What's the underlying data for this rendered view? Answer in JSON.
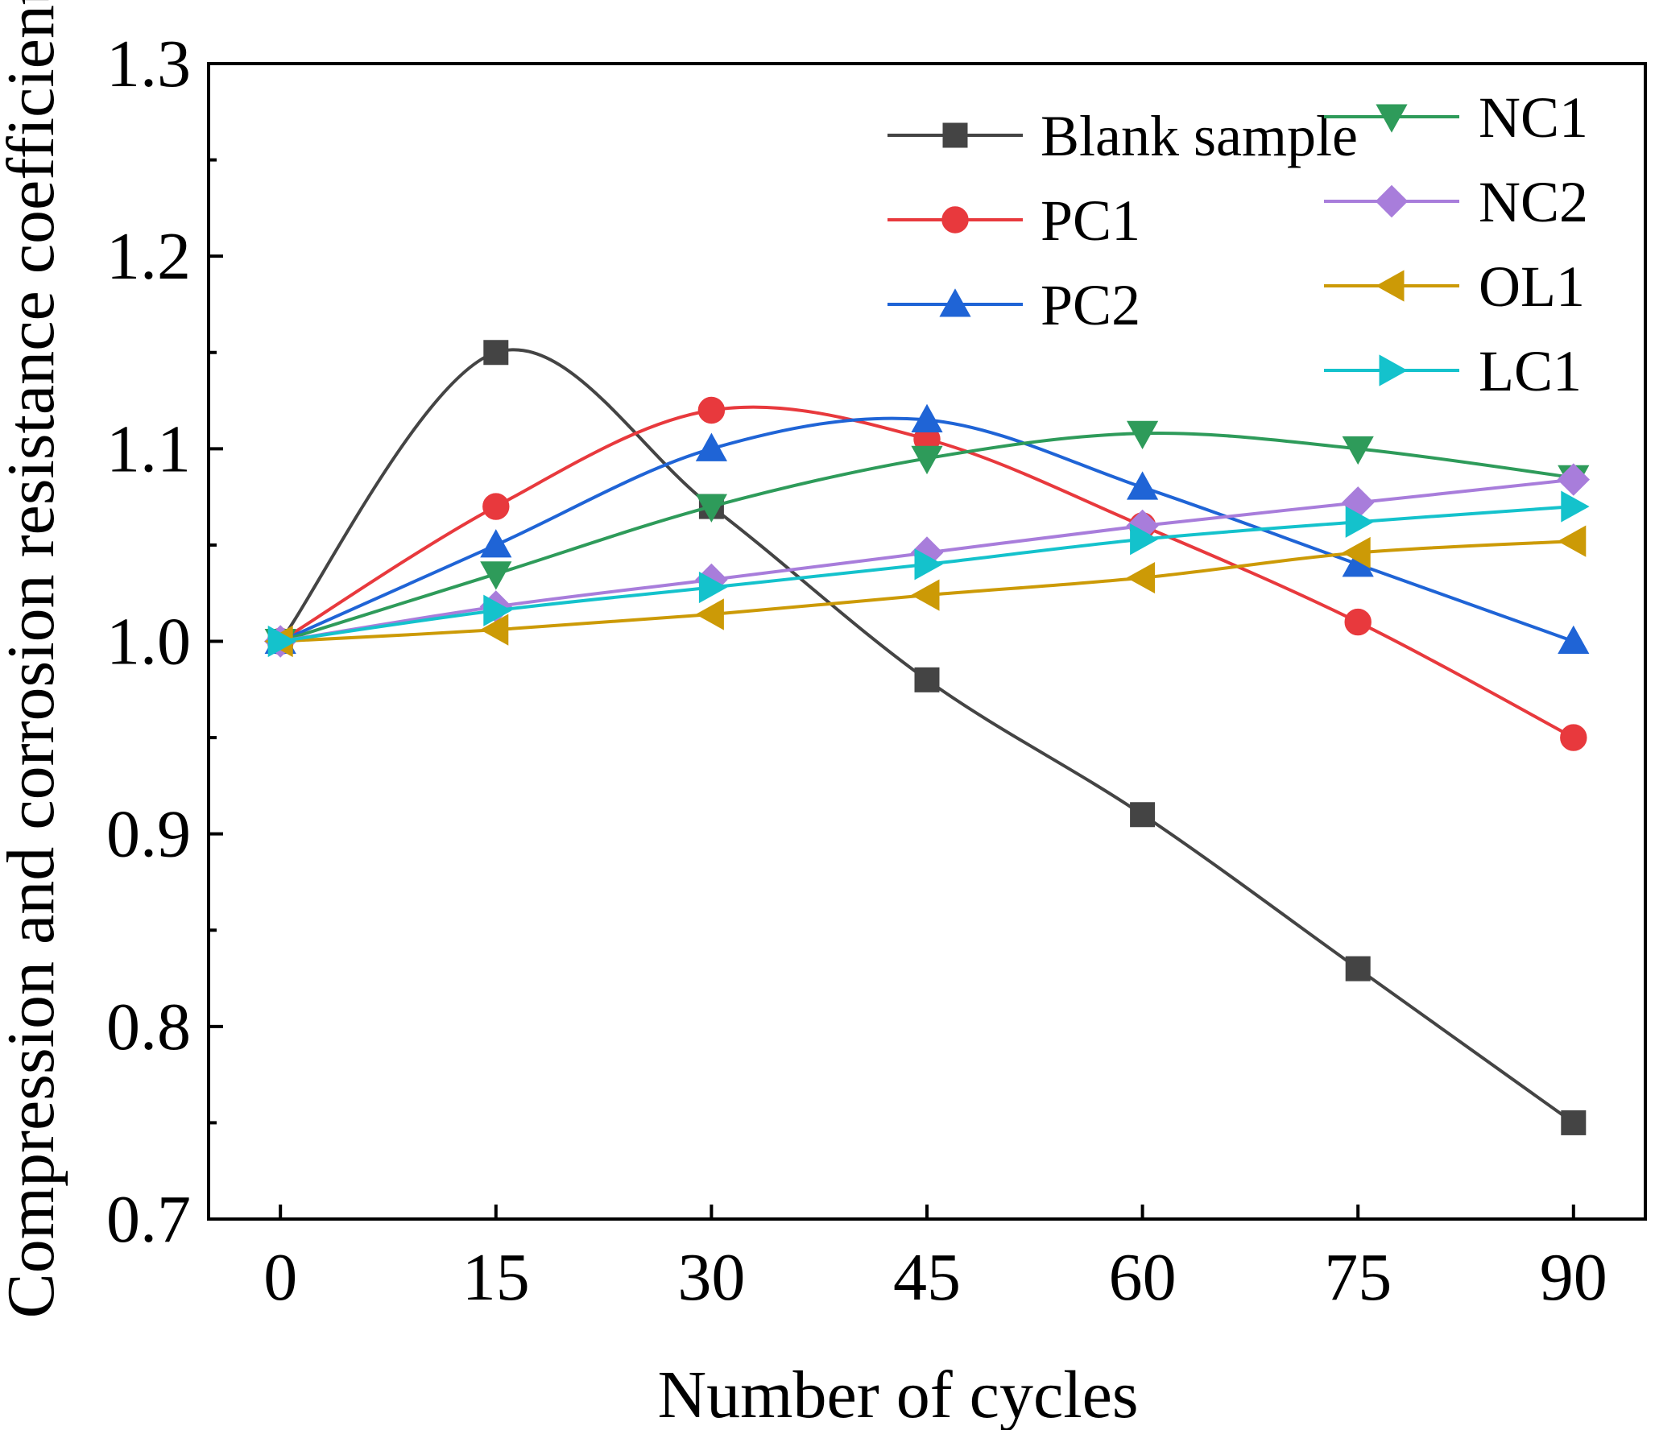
{
  "chart_data": {
    "type": "line",
    "title": "",
    "xlabel": "Number of cycles",
    "ylabel": "Compression and corrosion resistance coefficient",
    "x": [
      0,
      15,
      30,
      45,
      60,
      75,
      90
    ],
    "xticks": [
      "0",
      "15",
      "30",
      "45",
      "60",
      "75",
      "90"
    ],
    "xlim": [
      -5,
      95
    ],
    "yticks": [
      "0.7",
      "0.8",
      "0.9",
      "1.0",
      "1.1",
      "1.2",
      "1.3"
    ],
    "ylim": [
      0.7,
      1.3
    ],
    "grid": false,
    "legend_position": "top-right",
    "series": [
      {
        "name": "Blank sample",
        "color": "#444444",
        "marker": "square",
        "values": [
          1.0,
          1.15,
          1.07,
          0.98,
          0.91,
          0.83,
          0.75
        ]
      },
      {
        "name": "PC1",
        "color": "#e8393d",
        "marker": "circle",
        "values": [
          1.0,
          1.07,
          1.12,
          1.105,
          1.06,
          1.01,
          0.95
        ]
      },
      {
        "name": "PC2",
        "color": "#1f64d6",
        "marker": "triangle-up",
        "values": [
          1.0,
          1.05,
          1.1,
          1.115,
          1.08,
          1.04,
          1.0
        ]
      },
      {
        "name": "NC1",
        "color": "#2e9b5a",
        "marker": "triangle-down",
        "values": [
          1.0,
          1.035,
          1.07,
          1.095,
          1.108,
          1.1,
          1.085
        ]
      },
      {
        "name": "NC2",
        "color": "#a87ddb",
        "marker": "diamond",
        "values": [
          1.0,
          1.018,
          1.032,
          1.046,
          1.06,
          1.072,
          1.084
        ]
      },
      {
        "name": "OL1",
        "color": "#cc9a06",
        "marker": "triangle-left",
        "values": [
          1.0,
          1.006,
          1.014,
          1.024,
          1.033,
          1.046,
          1.052
        ]
      },
      {
        "name": "LC1",
        "color": "#14c2cc",
        "marker": "triangle-right",
        "values": [
          1.0,
          1.016,
          1.028,
          1.04,
          1.053,
          1.062,
          1.07
        ]
      }
    ]
  }
}
